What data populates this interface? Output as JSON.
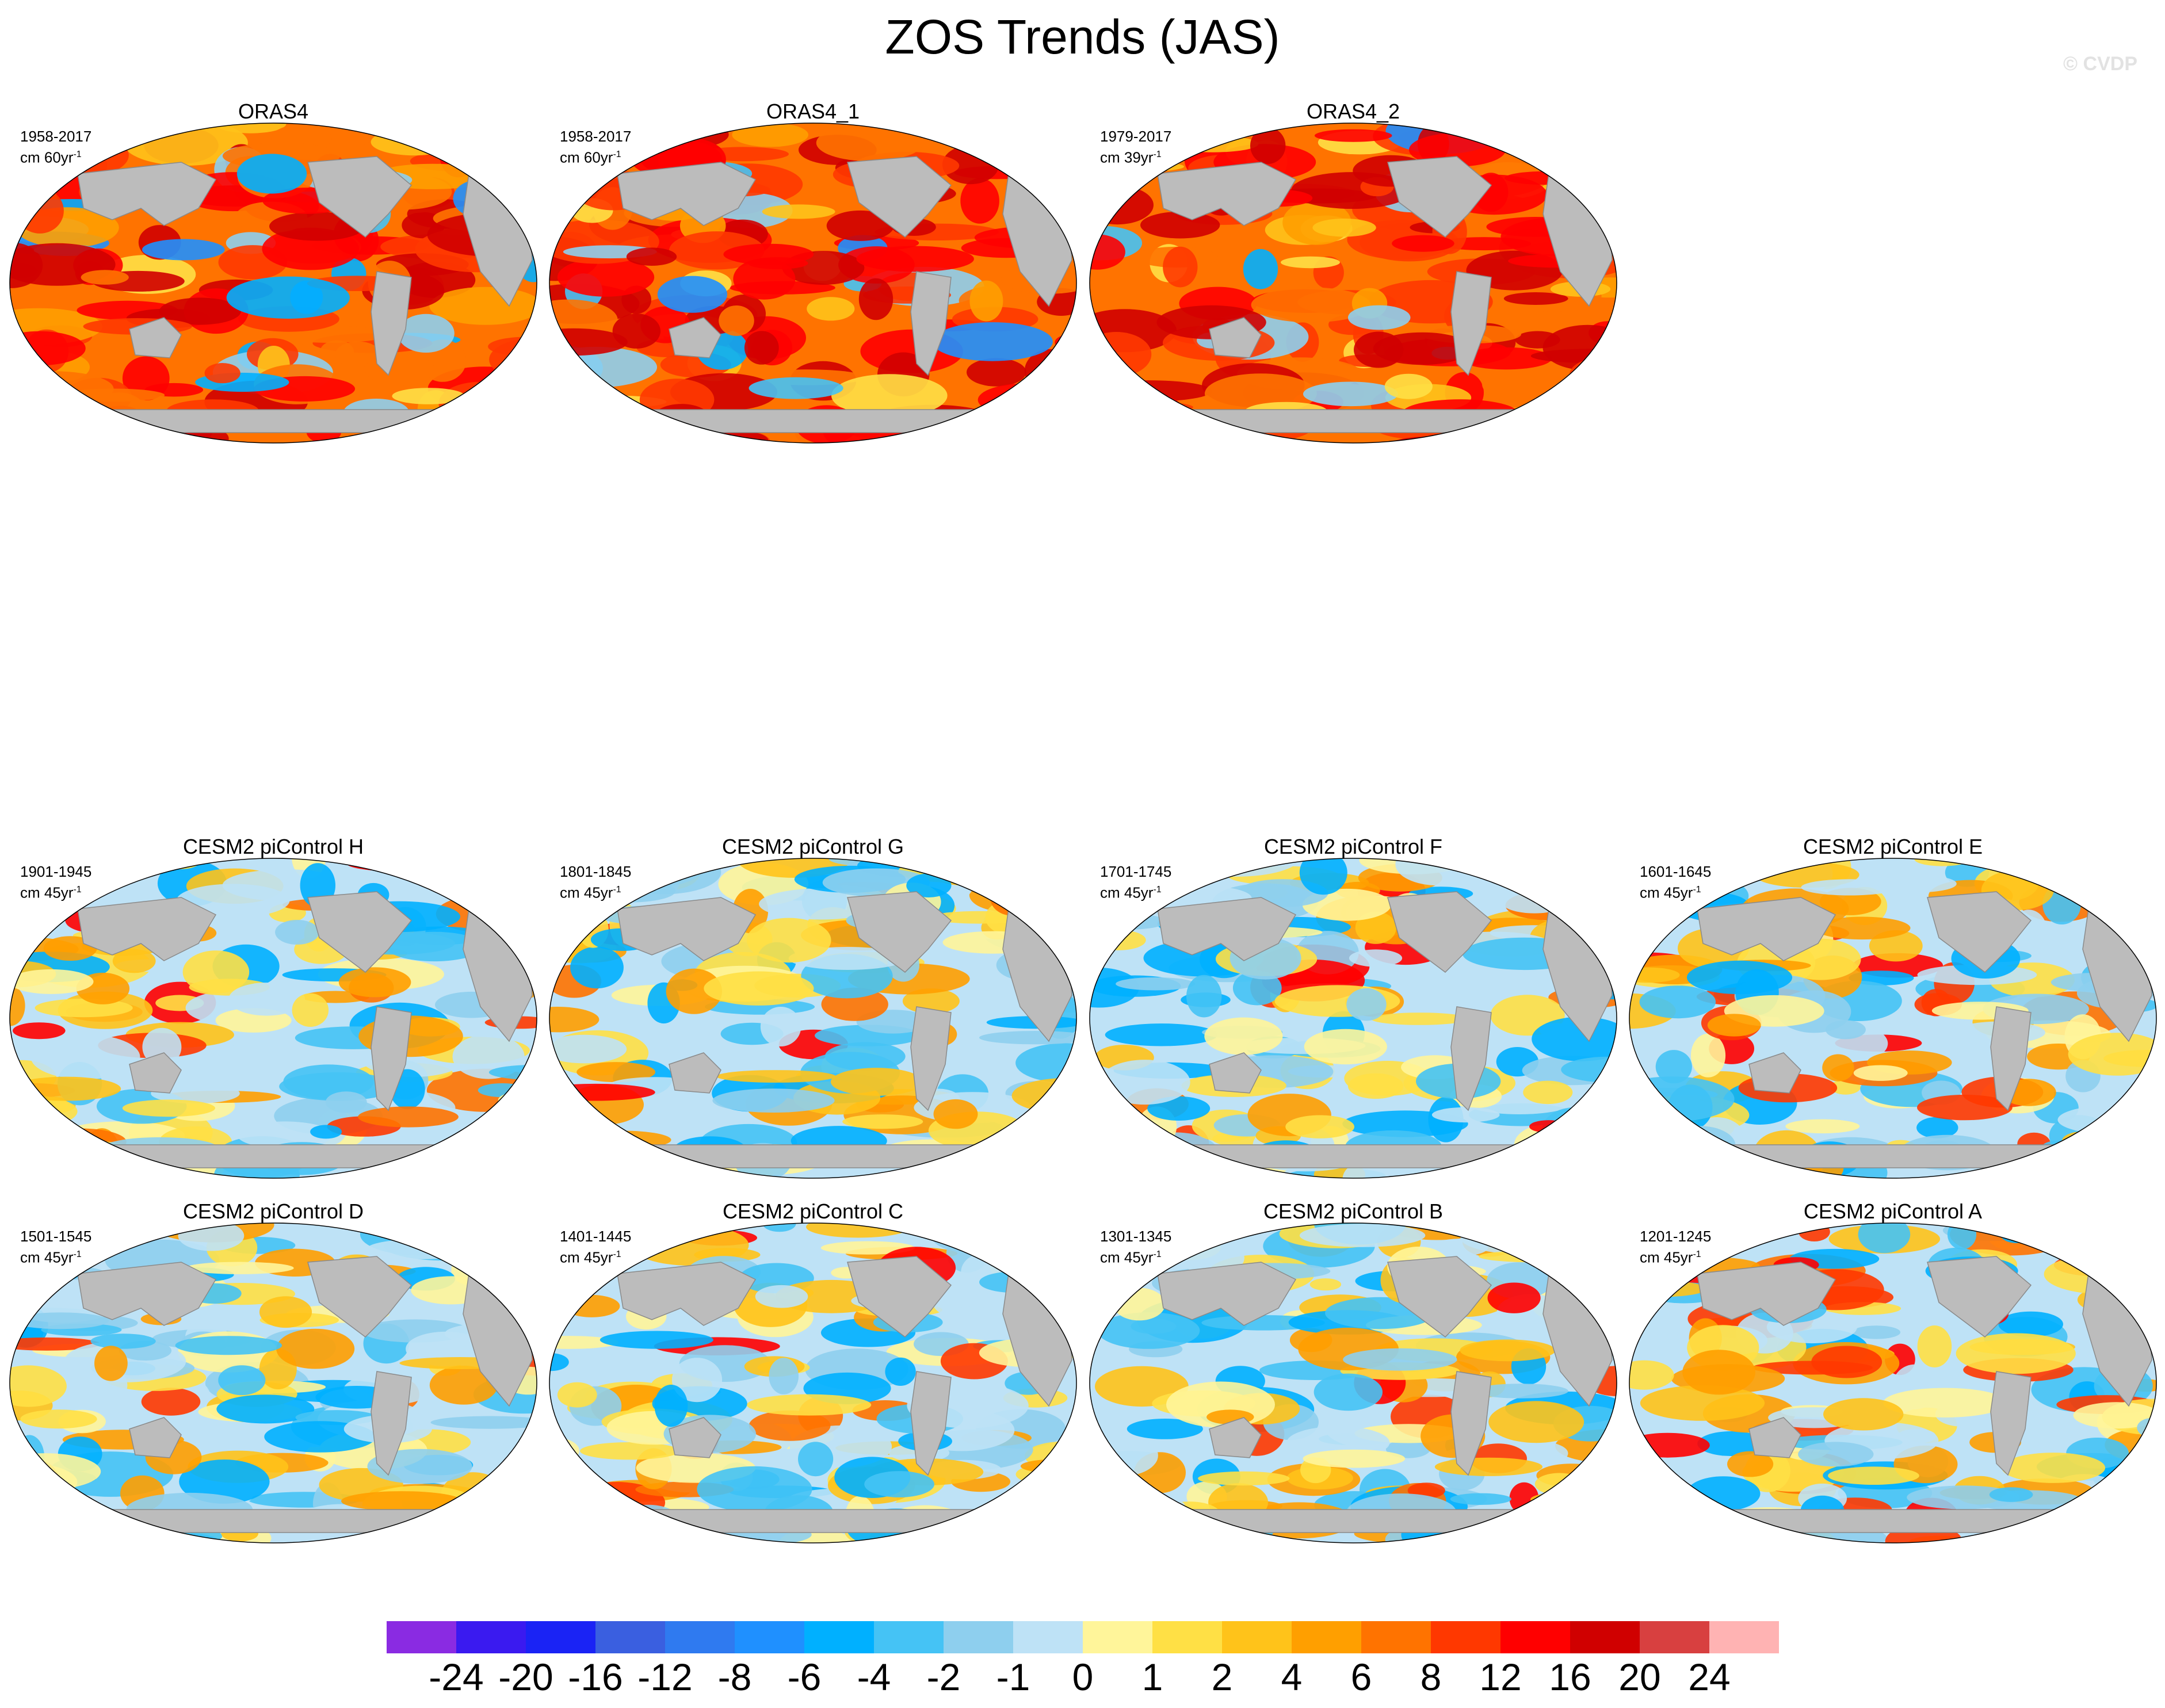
{
  "title": "ZOS Trends (JAS)",
  "watermark": "© CVDP",
  "chart_data": {
    "type": "heatmap",
    "title": "ZOS Trends (JAS)",
    "projection": "Robinson-style world maps, Pacific-centered",
    "panels": [
      {
        "id": "oras4",
        "title": "ORAS4",
        "period": "1958-2017",
        "unit_prefix": "cm 60yr",
        "unit_exp": "-1",
        "dominant_trend": "positive"
      },
      {
        "id": "oras4_1",
        "title": "ORAS4_1",
        "period": "1958-2017",
        "unit_prefix": "cm 60yr",
        "unit_exp": "-1",
        "dominant_trend": "positive"
      },
      {
        "id": "oras4_2",
        "title": "ORAS4_2",
        "period": "1979-2017",
        "unit_prefix": "cm 39yr",
        "unit_exp": "-1",
        "dominant_trend": "positive"
      },
      {
        "id": "cesm_h",
        "title": "CESM2 piControl H",
        "period": "1901-1945",
        "unit_prefix": "cm 45yr",
        "unit_exp": "-1",
        "dominant_trend": "mixed"
      },
      {
        "id": "cesm_g",
        "title": "CESM2 piControl G",
        "period": "1801-1845",
        "unit_prefix": "cm 45yr",
        "unit_exp": "-1",
        "dominant_trend": "mixed"
      },
      {
        "id": "cesm_f",
        "title": "CESM2 piControl F",
        "period": "1701-1745",
        "unit_prefix": "cm 45yr",
        "unit_exp": "-1",
        "dominant_trend": "mixed"
      },
      {
        "id": "cesm_e",
        "title": "CESM2 piControl E",
        "period": "1601-1645",
        "unit_prefix": "cm 45yr",
        "unit_exp": "-1",
        "dominant_trend": "mixed"
      },
      {
        "id": "cesm_d",
        "title": "CESM2 piControl D",
        "period": "1501-1545",
        "unit_prefix": "cm 45yr",
        "unit_exp": "-1",
        "dominant_trend": "mixed"
      },
      {
        "id": "cesm_c",
        "title": "CESM2 piControl C",
        "period": "1401-1445",
        "unit_prefix": "cm 45yr",
        "unit_exp": "-1",
        "dominant_trend": "mixed"
      },
      {
        "id": "cesm_b",
        "title": "CESM2 piControl B",
        "period": "1301-1345",
        "unit_prefix": "cm 45yr",
        "unit_exp": "-1",
        "dominant_trend": "mixed"
      },
      {
        "id": "cesm_a",
        "title": "CESM2 piControl A",
        "period": "1201-1245",
        "unit_prefix": "cm 45yr",
        "unit_exp": "-1",
        "dominant_trend": "mixed"
      }
    ],
    "colorbar": {
      "levels": [
        "-24",
        "-20",
        "-16",
        "-12",
        "-8",
        "-6",
        "-4",
        "-2",
        "-1",
        "0",
        "1",
        "2",
        "4",
        "6",
        "8",
        "12",
        "16",
        "20",
        "24"
      ],
      "colors": [
        "#8a2be2",
        "#3a1af0",
        "#1a23f5",
        "#3a5fe0",
        "#2f7af0",
        "#1f90ff",
        "#00b0ff",
        "#45c3f5",
        "#8ecfee",
        "#bee2f6",
        "#fff59a",
        "#ffe045",
        "#ffc31a",
        "#ff9f00",
        "#ff7300",
        "#ff3800",
        "#ff0000",
        "#d00000",
        "#d84040",
        "#ffb3b3"
      ],
      "label_interval": 1
    }
  },
  "map_colors": {
    "land": "#bcbcbc",
    "coast": "#8a8a8a",
    "border": "#000000"
  }
}
